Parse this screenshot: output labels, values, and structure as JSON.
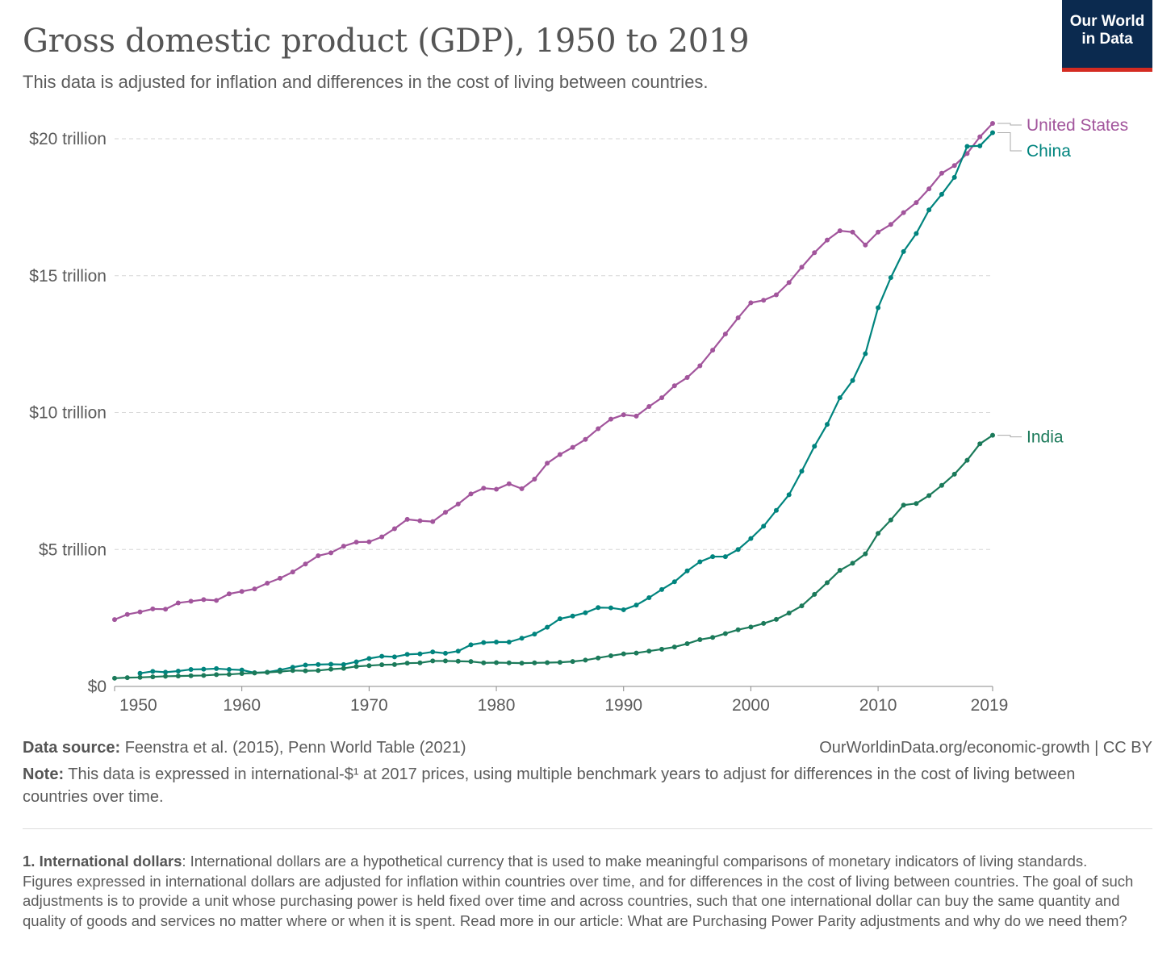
{
  "header": {
    "title": "Gross domestic product (GDP), 1950 to 2019",
    "subtitle": "This data is adjusted for inflation and differences in the cost of living between countries.",
    "logo_line1": "Our World",
    "logo_line2": "in Data"
  },
  "footer": {
    "source_label": "Data source:",
    "source_text": " Feenstra et al. (2015), Penn World Table (2021)",
    "url": "OurWorldinData.org/economic-growth | CC BY",
    "note_label": "Note:",
    "note_text": " This data is expressed in international-$¹ at 2017 prices, using multiple benchmark years to adjust for differences in the cost of living between countries over time.",
    "footnote_label": "1. International dollars",
    "footnote_text": ": International dollars are a hypothetical currency that is used to make meaningful comparisons of monetary indicators of living standards. Figures expressed in international dollars are adjusted for inflation within countries over time, and for differences in the cost of living between countries. The goal of such adjustments is to provide a unit whose purchasing power is held fixed over time and across countries, such that one international dollar can buy the same quantity and quality of goods and services no matter where or when it is spent. Read more in our article: What are Purchasing Power Parity adjustments and why do we need them?"
  },
  "colors": {
    "United States": "#a2559c",
    "China": "#00847e",
    "India": "#1b7a5a",
    "grid": "#d6d6d6",
    "logo_bg": "#0b2a4f",
    "logo_bar": "#d42b21"
  },
  "chart_data": {
    "type": "line",
    "title": "Gross domestic product (GDP), 1950 to 2019",
    "subtitle": "This data is adjusted for inflation and differences in the cost of living between countries.",
    "xlabel": "",
    "ylabel": "",
    "xlim": [
      1950,
      2019
    ],
    "ylim": [
      0,
      20
    ],
    "y_unit": "trillion international-$ (2017 prices)",
    "x_ticks": [
      1950,
      1960,
      1970,
      1980,
      1990,
      2000,
      2010,
      2019
    ],
    "y_ticks": [
      0,
      5,
      10,
      15,
      20
    ],
    "y_tick_labels": [
      "$0",
      "$5 trillion",
      "$10 trillion",
      "$15 trillion",
      "$20 trillion"
    ],
    "grid": "horizontal dashed",
    "legend": "right, labels at line ends",
    "series": [
      {
        "name": "United States",
        "x_start": 1950,
        "values": [
          2.44,
          2.63,
          2.72,
          2.83,
          2.82,
          3.05,
          3.11,
          3.17,
          3.14,
          3.38,
          3.47,
          3.56,
          3.77,
          3.95,
          4.18,
          4.47,
          4.77,
          4.88,
          5.12,
          5.27,
          5.28,
          5.46,
          5.76,
          6.1,
          6.05,
          6.02,
          6.36,
          6.66,
          7.03,
          7.24,
          7.2,
          7.4,
          7.22,
          7.57,
          8.15,
          8.47,
          8.73,
          9.02,
          9.41,
          9.76,
          9.92,
          9.87,
          10.22,
          10.54,
          10.98,
          11.28,
          11.71,
          12.28,
          12.87,
          13.46,
          14.01,
          14.1,
          14.3,
          14.75,
          15.31,
          15.84,
          16.3,
          16.64,
          16.59,
          16.12,
          16.59,
          16.87,
          17.3,
          17.67,
          18.17,
          18.74,
          19.02,
          19.46,
          20.07,
          20.56
        ]
      },
      {
        "name": "China",
        "x_start": 1952,
        "values": [
          0.48,
          0.55,
          0.52,
          0.56,
          0.62,
          0.63,
          0.65,
          0.62,
          0.6,
          0.5,
          0.52,
          0.6,
          0.7,
          0.78,
          0.8,
          0.81,
          0.8,
          0.9,
          1.02,
          1.1,
          1.08,
          1.17,
          1.19,
          1.26,
          1.21,
          1.29,
          1.52,
          1.6,
          1.62,
          1.62,
          1.76,
          1.91,
          2.16,
          2.47,
          2.57,
          2.69,
          2.88,
          2.87,
          2.8,
          2.97,
          3.24,
          3.54,
          3.82,
          4.22,
          4.55,
          4.74,
          4.74,
          5.0,
          5.4,
          5.85,
          6.43,
          7.0,
          7.86,
          8.77,
          9.57,
          10.54,
          11.17,
          12.15,
          13.83,
          14.93,
          15.88,
          16.54,
          17.4,
          17.97,
          18.59,
          19.72,
          19.74,
          20.22
        ]
      },
      {
        "name": "India",
        "x_start": 1950,
        "values": [
          0.3,
          0.32,
          0.33,
          0.35,
          0.37,
          0.38,
          0.39,
          0.4,
          0.43,
          0.44,
          0.47,
          0.49,
          0.51,
          0.54,
          0.58,
          0.57,
          0.58,
          0.63,
          0.66,
          0.73,
          0.76,
          0.79,
          0.8,
          0.85,
          0.86,
          0.93,
          0.93,
          0.92,
          0.91,
          0.86,
          0.87,
          0.86,
          0.85,
          0.86,
          0.87,
          0.88,
          0.91,
          0.96,
          1.04,
          1.12,
          1.19,
          1.22,
          1.29,
          1.36,
          1.44,
          1.56,
          1.71,
          1.79,
          1.93,
          2.07,
          2.17,
          2.3,
          2.45,
          2.68,
          2.94,
          3.36,
          3.79,
          4.24,
          4.5,
          4.84,
          5.59,
          6.08,
          6.62,
          6.68,
          6.97,
          7.34,
          7.75,
          8.26,
          8.86,
          9.17
        ]
      }
    ]
  }
}
